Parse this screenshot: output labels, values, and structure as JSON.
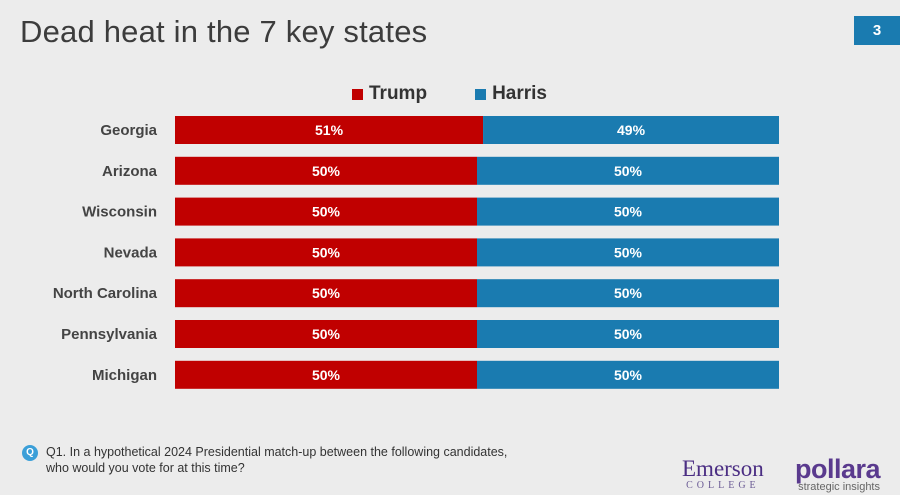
{
  "page": {
    "title": "Dead heat in the 7 key states",
    "page_number": "3"
  },
  "footer": {
    "question_icon": "Q",
    "question_line1": "Q1. In a hypothetical 2024 Presidential match-up between the following candidates,",
    "question_line2": "who would you vote for at this time?",
    "logo_emerson": "Emerson",
    "logo_emerson_sub": "COLLEGE",
    "logo_pollara": "pollara",
    "logo_pollara_sub": "strategic insights"
  },
  "colors": {
    "trump": "#c00000",
    "harris": "#1a7bb0",
    "bar_text": "#ffffff",
    "badge": "#1a7bb0"
  },
  "chart_data": {
    "type": "bar",
    "orientation": "horizontal",
    "stacked": true,
    "title": "Dead heat in the 7 key states",
    "legend": [
      "Trump",
      "Harris"
    ],
    "legend_position": "top-center",
    "categories": [
      "Georgia",
      "Arizona",
      "Wisconsin",
      "Nevada",
      "North Carolina",
      "Pennsylvania",
      "Michigan"
    ],
    "series": [
      {
        "name": "Trump",
        "values": [
          51,
          50,
          50,
          50,
          50,
          50,
          50
        ],
        "labels": [
          "51%",
          "50%",
          "50%",
          "50%",
          "50%",
          "50%",
          "50%"
        ]
      },
      {
        "name": "Harris",
        "values": [
          49,
          50,
          50,
          50,
          50,
          50,
          50
        ],
        "labels": [
          "49%",
          "50%",
          "50%",
          "50%",
          "50%",
          "50%",
          "50%"
        ]
      }
    ],
    "xlim": [
      0,
      100
    ],
    "grid": false
  }
}
